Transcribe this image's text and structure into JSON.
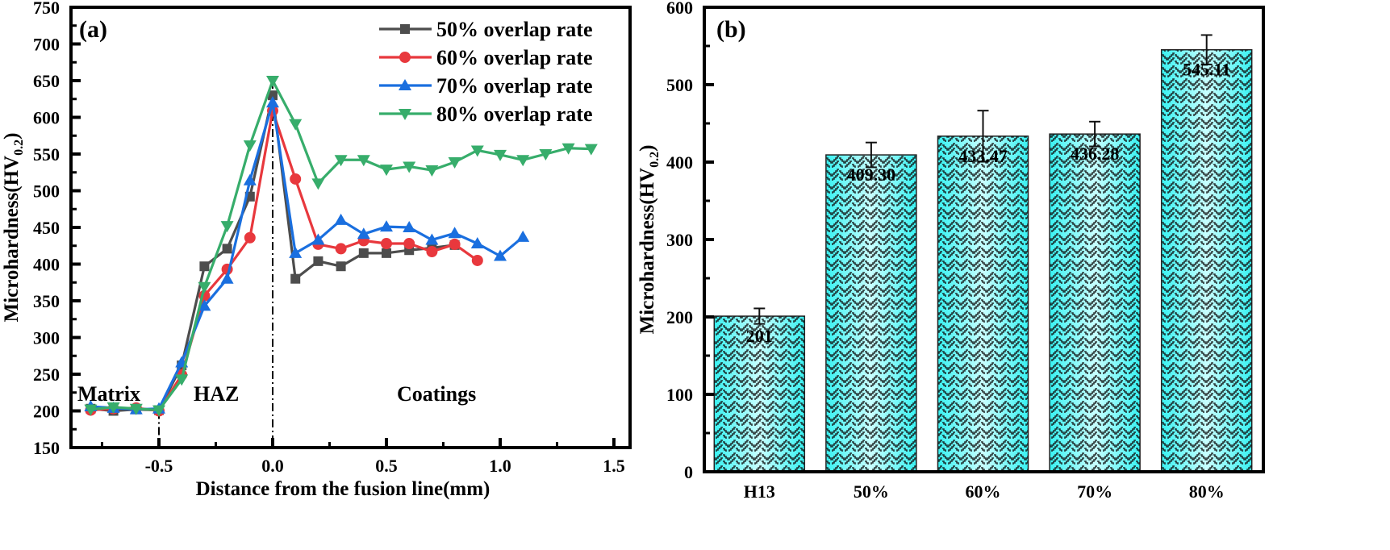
{
  "chart_data": [
    {
      "type": "line",
      "panel_label": "(a)",
      "title": "",
      "xlabel": "Distance from the fusion line(mm)",
      "ylabel": "Microhardness(HV",
      "ylabel_subscript": "0.2",
      "ylabel_suffix": ")",
      "xlim": [
        -0.9,
        1.5
      ],
      "ylim": [
        150,
        750
      ],
      "xticks": [
        -0.5,
        0.0,
        0.5,
        1.0,
        1.5
      ],
      "xtick_labels": [
        "-0.5",
        "0.0",
        "0.5",
        "1.0",
        "1.5"
      ],
      "yticks": [
        150,
        200,
        250,
        300,
        350,
        400,
        450,
        500,
        550,
        600,
        650,
        700,
        750
      ],
      "ytick_labels": [
        "150",
        "200",
        "250",
        "300",
        "350",
        "400",
        "450",
        "500",
        "550",
        "600",
        "650",
        "700",
        "750"
      ],
      "grid": false,
      "legend_position": "top-right",
      "vertical_reference_lines": [
        -0.5,
        0.0
      ],
      "region_labels": [
        "Matrix",
        "HAZ",
        "Coatings"
      ],
      "series": [
        {
          "name": "50% overlap rate",
          "color": "#4d4d4d",
          "marker": "square",
          "x": [
            -0.8,
            -0.7,
            -0.6,
            -0.5,
            -0.4,
            -0.3,
            -0.2,
            -0.1,
            0.0,
            0.1,
            0.2,
            0.3,
            0.4,
            0.5,
            0.6,
            0.7,
            0.8
          ],
          "y": [
            203,
            200,
            202,
            201,
            262,
            397,
            421,
            492,
            630,
            380,
            404,
            397,
            415,
            415,
            419,
            422,
            426
          ]
        },
        {
          "name": "60% overlap rate",
          "color": "#e8383d",
          "marker": "circle",
          "x": [
            -0.8,
            -0.7,
            -0.6,
            -0.5,
            -0.4,
            -0.3,
            -0.2,
            -0.1,
            0.0,
            0.1,
            0.2,
            0.3,
            0.4,
            0.5,
            0.6,
            0.7,
            0.8,
            0.9
          ],
          "y": [
            201,
            203,
            204,
            200,
            249,
            357,
            393,
            436,
            609,
            516,
            427,
            421,
            432,
            428,
            428,
            417,
            427,
            405
          ]
        },
        {
          "name": "70% overlap rate",
          "color": "#1a6fdf",
          "marker": "triangle-up",
          "x": [
            -0.8,
            -0.7,
            -0.6,
            -0.5,
            -0.4,
            -0.3,
            -0.2,
            -0.1,
            0.0,
            0.1,
            0.2,
            0.3,
            0.4,
            0.5,
            0.6,
            0.7,
            0.8,
            0.9,
            1.0,
            1.1
          ],
          "y": [
            206,
            204,
            202,
            203,
            266,
            343,
            380,
            514,
            620,
            415,
            433,
            460,
            441,
            451,
            450,
            433,
            442,
            428,
            411,
            437
          ]
        },
        {
          "name": "80% overlap rate",
          "color": "#37ad6b",
          "marker": "triangle-down",
          "x": [
            -0.8,
            -0.7,
            -0.6,
            -0.5,
            -0.4,
            -0.3,
            -0.2,
            -0.1,
            0.0,
            0.1,
            0.2,
            0.3,
            0.4,
            0.5,
            0.6,
            0.7,
            0.8,
            0.9,
            1.0,
            1.1,
            1.2,
            1.3,
            1.4
          ],
          "y": [
            202,
            205,
            203,
            201,
            243,
            369,
            452,
            562,
            650,
            591,
            510,
            542,
            542,
            529,
            533,
            528,
            539,
            555,
            549,
            542,
            550,
            558,
            557
          ]
        }
      ]
    },
    {
      "type": "bar",
      "panel_label": "(b)",
      "title": "",
      "xlabel": "",
      "ylabel": "Microhardness(HV",
      "ylabel_subscript": "0.2",
      "ylabel_suffix": ")",
      "ylim": [
        0,
        600
      ],
      "yticks": [
        0,
        100,
        200,
        300,
        400,
        500,
        600
      ],
      "ytick_labels": [
        "0",
        "100",
        "200",
        "300",
        "400",
        "500",
        "600"
      ],
      "grid": false,
      "categories": [
        "H13",
        "50%",
        "60%",
        "70%",
        "80%"
      ],
      "values": [
        201,
        409.3,
        433.47,
        436.28,
        545.11
      ],
      "data_labels": [
        "201",
        "409.30",
        "433.47",
        "436.28",
        "545.11"
      ],
      "error": [
        10,
        16,
        33,
        16,
        19
      ],
      "bar_color": "#40f0f0",
      "bar_pattern": "herringbone"
    }
  ]
}
